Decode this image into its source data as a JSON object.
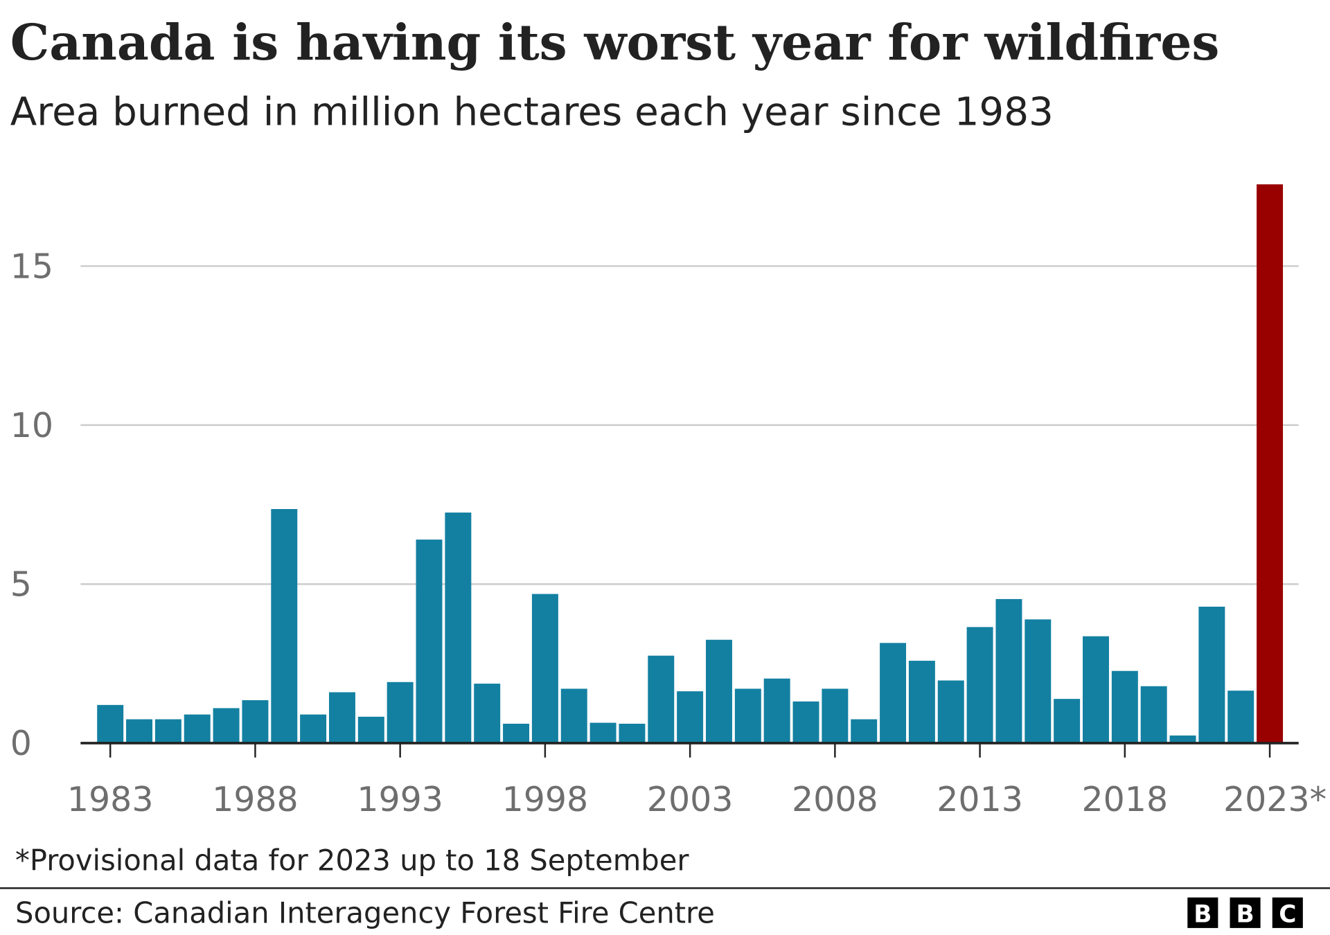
{
  "title": "Canada is having its worst year for wildfires",
  "subtitle": "Area burned in million hectares each year since 1983",
  "note": "*Provisional data for 2023 up to 18 September",
  "source": "Source: Canadian Interagency Forest Fire Centre",
  "logo": [
    "B",
    "B",
    "C"
  ],
  "colors": {
    "bar": "#1380a1",
    "highlight": "#990000",
    "grid": "#cccccc"
  },
  "chart_data": {
    "type": "bar",
    "title": "Canada is having its worst year for wildfires",
    "subtitle": "Area burned in million hectares each year since 1983",
    "xlabel": "",
    "ylabel": "",
    "ylim": [
      0,
      17.6
    ],
    "yticks": [
      "0",
      "5",
      "10",
      "15"
    ],
    "xticks": [
      "1983",
      "1988",
      "1993",
      "1998",
      "2003",
      "2008",
      "2013",
      "2018",
      "2023*"
    ],
    "grid": true,
    "highlight_category": "2023",
    "categories": [
      "1983",
      "1984",
      "1985",
      "1986",
      "1987",
      "1988",
      "1989",
      "1990",
      "1991",
      "1992",
      "1993",
      "1994",
      "1995",
      "1996",
      "1997",
      "1998",
      "1999",
      "2000",
      "2001",
      "2002",
      "2003",
      "2004",
      "2005",
      "2006",
      "2007",
      "2008",
      "2009",
      "2010",
      "2011",
      "2012",
      "2013",
      "2014",
      "2015",
      "2016",
      "2017",
      "2018",
      "2019",
      "2020",
      "2021",
      "2022",
      "2023"
    ],
    "values": [
      1.2,
      0.75,
      0.75,
      0.9,
      1.1,
      1.35,
      7.36,
      0.9,
      1.6,
      0.83,
      1.92,
      6.4,
      7.25,
      1.87,
      0.61,
      4.69,
      1.71,
      0.64,
      0.61,
      2.75,
      1.63,
      3.25,
      1.71,
      2.03,
      1.31,
      1.71,
      0.75,
      3.15,
      2.59,
      1.97,
      3.65,
      4.53,
      3.89,
      1.39,
      3.36,
      2.27,
      1.79,
      0.24,
      4.29,
      1.65,
      17.57
    ]
  }
}
